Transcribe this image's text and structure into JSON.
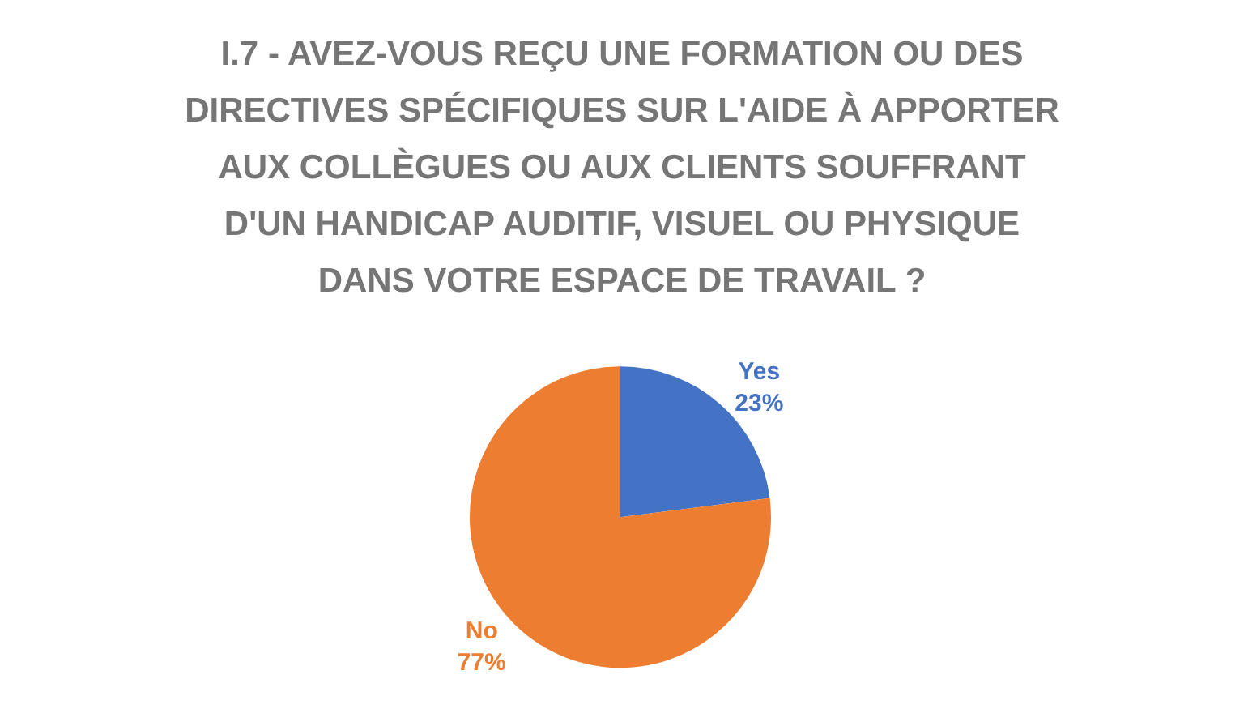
{
  "chart_data": {
    "type": "pie",
    "title": "I.7 - AVEZ-VOUS REÇU UNE FORMATION OU DES\nDIRECTIVES SPÉCIFIQUES SUR L'AIDE À APPORTER\nAUX COLLÈGUES OU AUX CLIENTS SOUFFRANT\nD'UN HANDICAP AUDITIF, VISUEL OU PHYSIQUE\nDANS VOTRE ESPACE DE TRAVAIL ?",
    "categories": [
      "Yes",
      "No"
    ],
    "values": [
      23,
      77
    ],
    "colors": [
      "#4472c4",
      "#ed7d31"
    ],
    "value_labels": [
      "23%",
      "77%"
    ],
    "legend": false
  }
}
